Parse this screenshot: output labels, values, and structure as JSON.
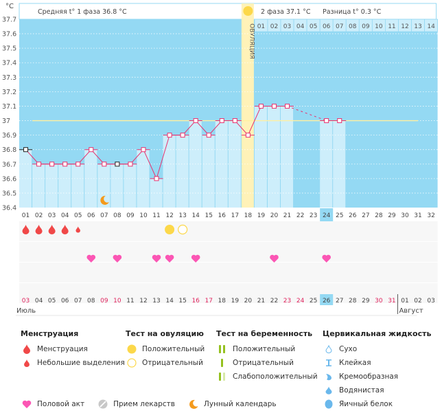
{
  "header": {
    "unit_label": "°C",
    "phase1_label": "Средняя t° 1 фаза 36.8 °C",
    "phase2_label": "2 фаза 37.1 °C",
    "difference_label": "Разница t° 0.3 °C",
    "ovulation_label": "ОВУЛЯЦИЯ"
  },
  "chart_data": {
    "type": "line",
    "title": "",
    "xlabel": "",
    "ylabel": "°C",
    "ylim": [
      36.4,
      37.7
    ],
    "yticks": [
      "37.7",
      "37.6",
      "37.5",
      "37.4",
      "37.3",
      "37.2",
      "37.1",
      "37",
      "36.9",
      "36.8",
      "36.7",
      "36.6",
      "36.5",
      "36.4"
    ],
    "cycle_days": [
      "01",
      "02",
      "03",
      "04",
      "05",
      "06",
      "07",
      "08",
      "09",
      "10",
      "11",
      "12",
      "13",
      "14",
      "15",
      "16",
      "17",
      "18",
      "19",
      "20",
      "21",
      "22",
      "23",
      "24",
      "25",
      "26",
      "27",
      "28",
      "29",
      "30",
      "31",
      "32"
    ],
    "temperatures": [
      36.8,
      36.7,
      36.7,
      36.7,
      36.7,
      36.8,
      36.7,
      36.7,
      36.7,
      36.8,
      36.6,
      36.9,
      36.9,
      37.0,
      36.9,
      37.0,
      37.0,
      36.9,
      37.1,
      37.1,
      37.1,
      null,
      null,
      37.0,
      37.0,
      null,
      null,
      null,
      null,
      null,
      null,
      null
    ],
    "black_marker_days": [
      1,
      8
    ],
    "dashed_gap": [
      21,
      24
    ],
    "coverline": 37.0,
    "coverline_days": [
      2,
      31
    ],
    "ovulation_day": 18,
    "today_day": 24,
    "phase2_days": [
      "01",
      "02",
      "03",
      "04",
      "05",
      "06",
      "07",
      "08",
      "09",
      "10",
      "11",
      "12",
      "13",
      "14"
    ],
    "markers": {
      "menstruation": [
        1,
        2,
        3,
        4
      ],
      "spotting": [
        5
      ],
      "ovulation_test_positive": [
        12
      ],
      "ovulation_test_negative": [
        13
      ],
      "intercourse": [
        6,
        8,
        11,
        12,
        14,
        20,
        24
      ],
      "moon": [
        7
      ]
    },
    "calendar_dates": [
      "03",
      "04",
      "05",
      "06",
      "07",
      "08",
      "09",
      "10",
      "11",
      "12",
      "13",
      "14",
      "15",
      "16",
      "17",
      "18",
      "19",
      "20",
      "21",
      "22",
      "23",
      "24",
      "25",
      "26",
      "27",
      "28",
      "29",
      "30",
      "31",
      "01",
      "02",
      "03"
    ],
    "weekend_indices": [
      0,
      6,
      7,
      13,
      14,
      20,
      21,
      27,
      28
    ],
    "today_date_index": 23,
    "month_labels": [
      {
        "label": "Июль",
        "start_index": 0
      },
      {
        "label": "Август",
        "start_index": 29
      }
    ]
  },
  "colors": {
    "plot_bg": "#94d9f3",
    "bar_fill": "#cdeefb",
    "ovulation_fill": "#fff2b8",
    "line": "#e8326e",
    "coverline": "#fff0a0",
    "weekend_text": "#e0245e",
    "today_bg": "#94d9f3",
    "menstruation": "#f04848",
    "heart": "#fb56b4",
    "ovulation_test": "#fcd84a",
    "moon": "#f49a1c",
    "pregnancy_test": "#95c11f",
    "pregnancy_test_faint": "#d7e9a8",
    "cervical": "#6ab8ec"
  },
  "legend": {
    "menstruation": {
      "title": "Менструация",
      "items": [
        "Менструация",
        "Небольшие выделения"
      ]
    },
    "ovulation_test": {
      "title": "Тест на овуляцию",
      "items": [
        "Положительный",
        "Отрицательный"
      ]
    },
    "pregnancy_test": {
      "title": "Тест на беременность",
      "items": [
        "Положительный",
        "Отрицательный",
        "Слабоположительный"
      ]
    },
    "cervical_fluid": {
      "title": "Цервикальная жидкость",
      "items": [
        "Сухо",
        "Клейкая",
        "Кремообразная",
        "Водянистая",
        "Яичный белок"
      ]
    },
    "other": [
      "Половой акт",
      "Прием лекарств",
      "Лунный календарь"
    ]
  }
}
